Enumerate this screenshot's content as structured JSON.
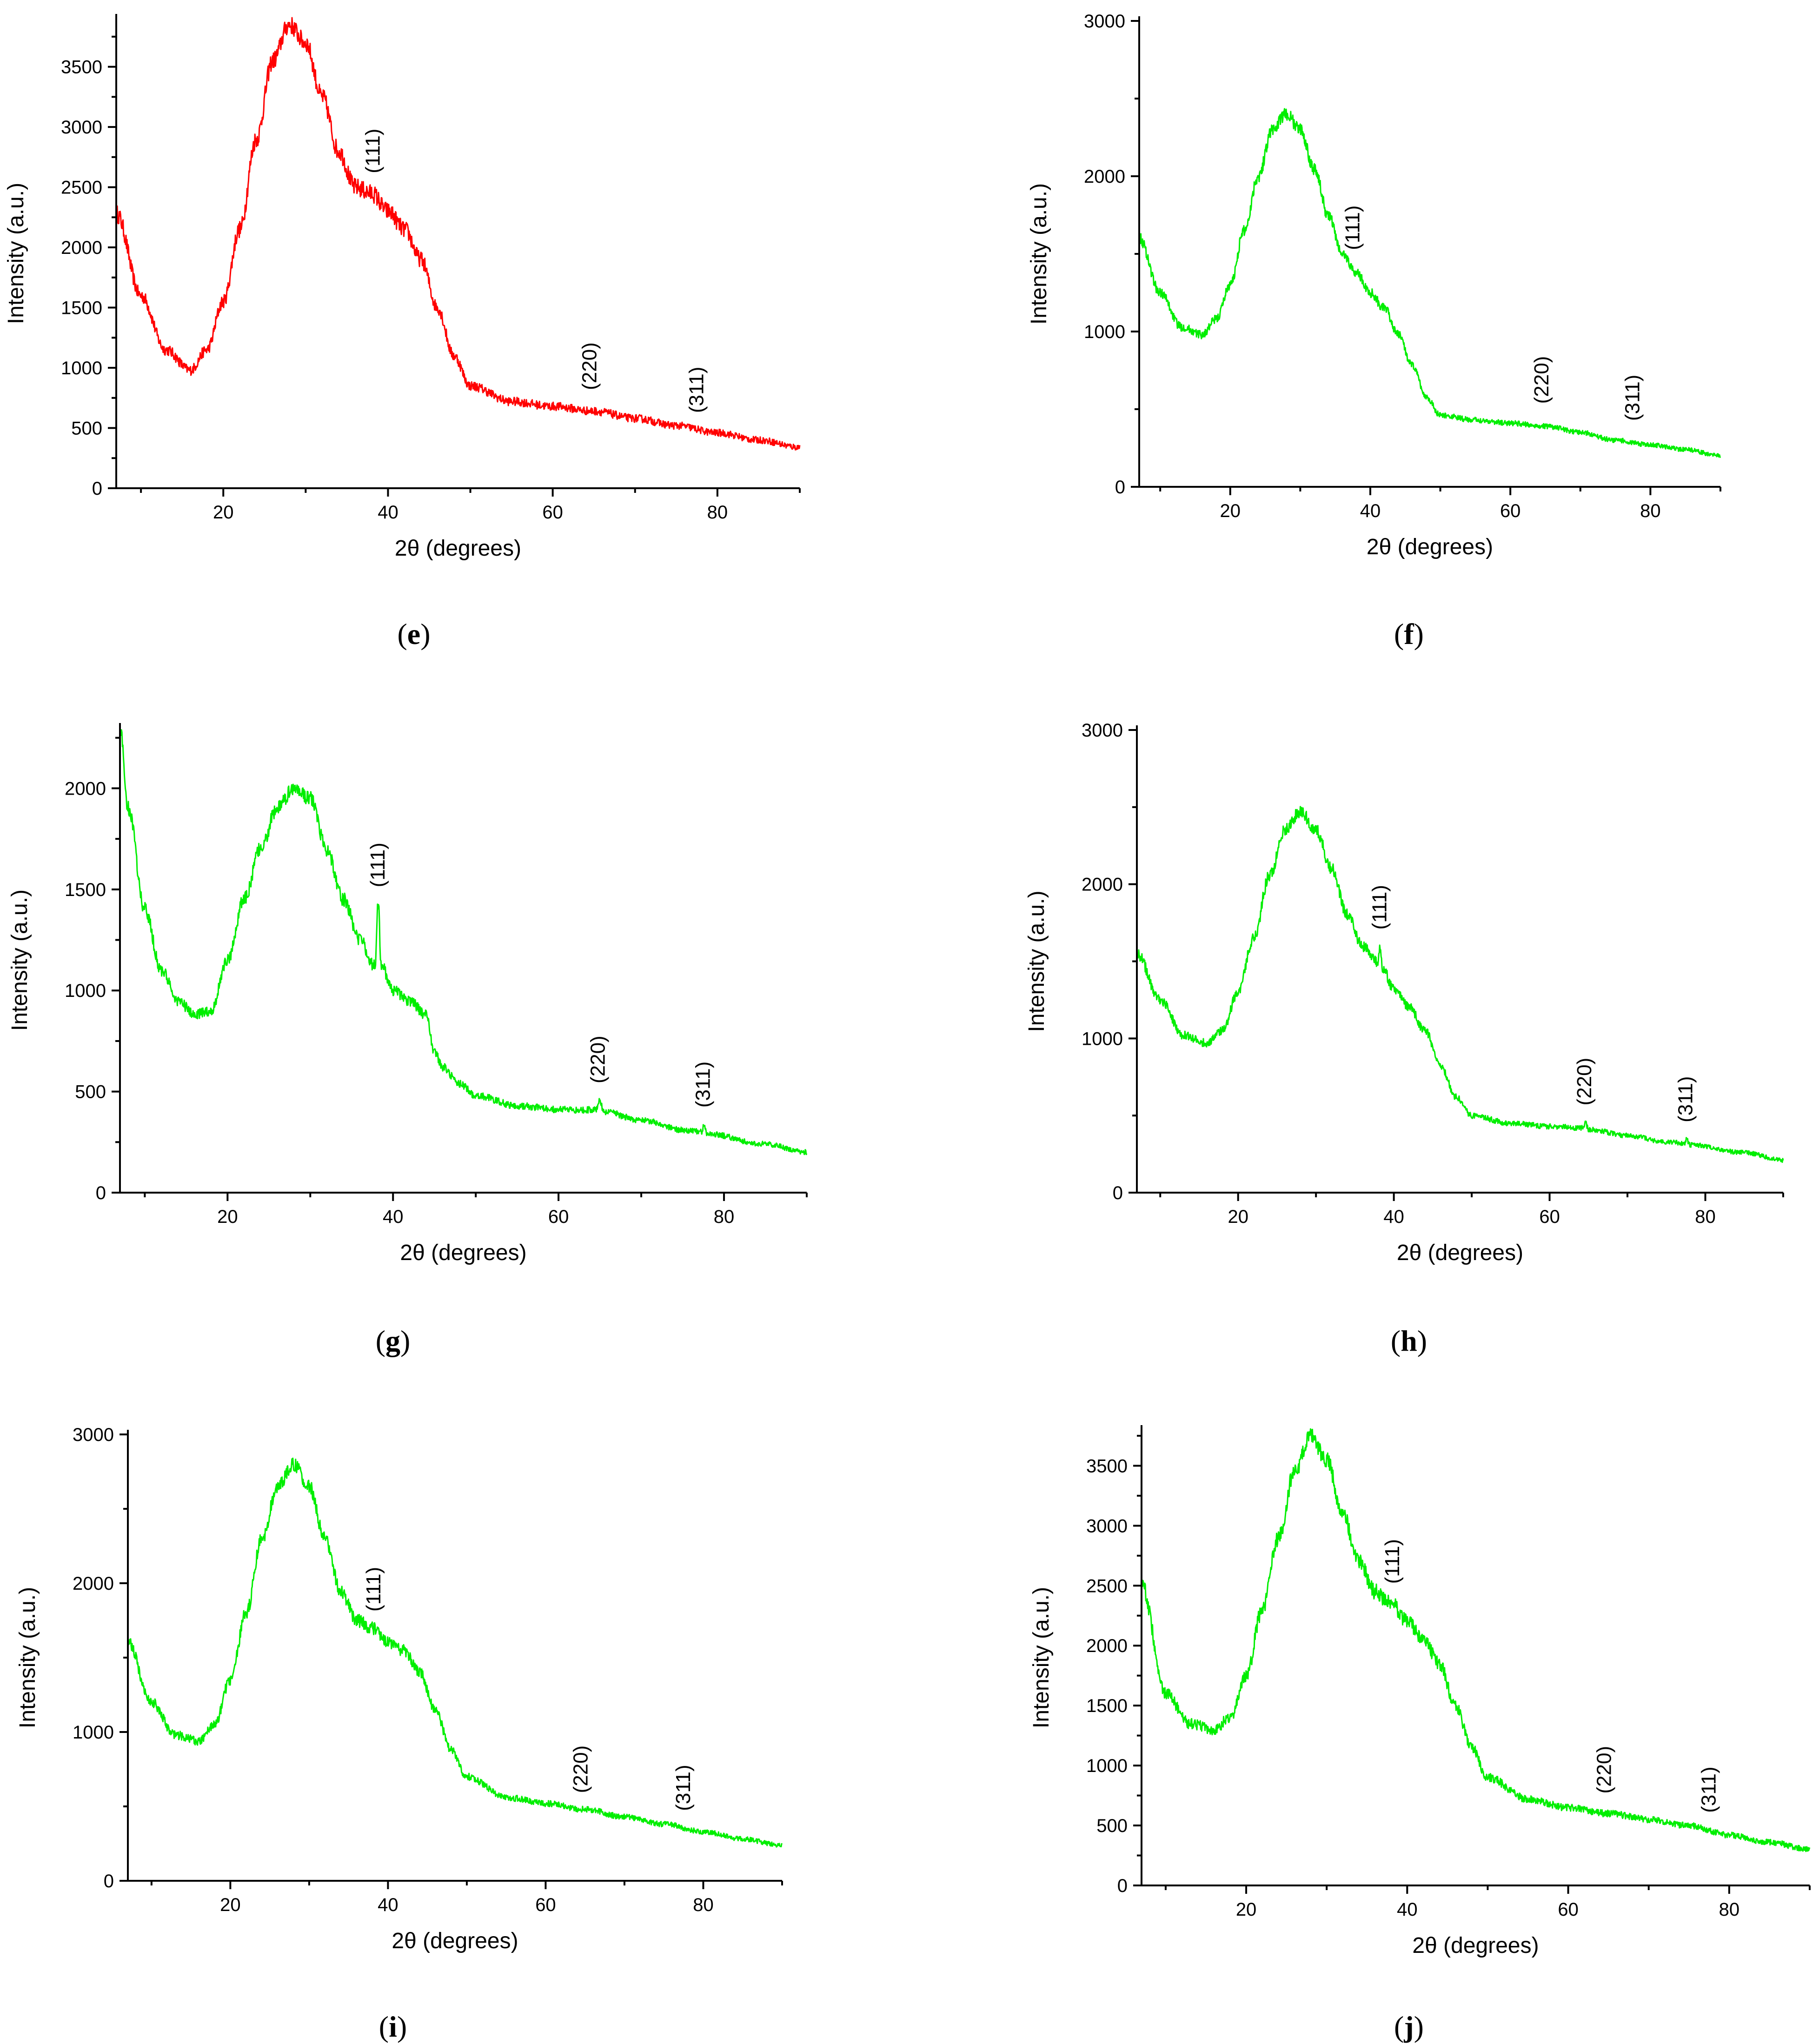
{
  "figure": {
    "domain": "XRD patterns"
  },
  "colors": {
    "red": "#ff0000",
    "green": "#00ee00",
    "axis": "#000000"
  },
  "chart_data": [
    {
      "id": "e",
      "type": "line",
      "panel_label": "e",
      "color": "#ff0000",
      "xlabel": "2θ (degrees)",
      "ylabel": "Intensity (a.u.)",
      "xlim": [
        7,
        90
      ],
      "ylim": [
        0,
        3900
      ],
      "xticks": [
        20,
        40,
        60,
        80
      ],
      "yticks": [
        0,
        500,
        1000,
        1500,
        2000,
        2500,
        3000,
        3500
      ],
      "peaks": [
        {
          "label": "(111)",
          "x": 38.2,
          "y": 2480
        },
        {
          "label": "(220)",
          "x": 64.5,
          "y": 680
        },
        {
          "label": "(311)",
          "x": 77.5,
          "y": 490
        }
      ],
      "series": [
        {
          "name": "e",
          "x": [
            7,
            10,
            13,
            16,
            18,
            20,
            22,
            24,
            26,
            28,
            30,
            32,
            34,
            36,
            38,
            40,
            42,
            44,
            46,
            48,
            50,
            55,
            60,
            65,
            70,
            75,
            80,
            85,
            90
          ],
          "values": [
            2280,
            1600,
            1150,
            980,
            1150,
            1550,
            2150,
            2900,
            3550,
            3850,
            3700,
            3250,
            2800,
            2500,
            2450,
            2300,
            2150,
            1900,
            1500,
            1100,
            850,
            720,
            680,
            640,
            580,
            520,
            460,
            400,
            340
          ]
        }
      ],
      "noise": 150
    },
    {
      "id": "f",
      "type": "line",
      "panel_label": "f",
      "color": "#00ee00",
      "xlabel": "2θ (degrees)",
      "ylabel": "Intensity (a.u.)",
      "xlim": [
        7,
        90
      ],
      "ylim": [
        0,
        3000
      ],
      "xticks": [
        20,
        40,
        60,
        80
      ],
      "yticks": [
        0,
        1000,
        2000,
        3000
      ],
      "peaks": [
        {
          "label": "(111)",
          "x": 37.5,
          "y": 1420
        },
        {
          "label": "(220)",
          "x": 64.5,
          "y": 430
        },
        {
          "label": "(311)",
          "x": 77.5,
          "y": 320
        }
      ],
      "series": [
        {
          "name": "f",
          "x": [
            7,
            10,
            13,
            16,
            18,
            20,
            22,
            24,
            26,
            28,
            30,
            32,
            34,
            36,
            38,
            40,
            42,
            44,
            46,
            48,
            50,
            55,
            60,
            65,
            70,
            75,
            80,
            85,
            90
          ],
          "values": [
            1600,
            1250,
            1030,
            980,
            1080,
            1300,
            1650,
            2000,
            2300,
            2400,
            2300,
            2050,
            1750,
            1500,
            1380,
            1250,
            1150,
            980,
            780,
            580,
            460,
            430,
            410,
            390,
            350,
            300,
            270,
            240,
            200
          ]
        }
      ],
      "noise": 80
    },
    {
      "id": "g",
      "type": "line",
      "panel_label": "g",
      "color": "#00ee00",
      "xlabel": "2θ (degrees)",
      "ylabel": "Intensity (a.u.)",
      "xlim": [
        7,
        90
      ],
      "ylim": [
        0,
        2300
      ],
      "xticks": [
        20,
        40,
        60,
        80
      ],
      "yticks": [
        0,
        500,
        1000,
        1500,
        2000
      ],
      "peaks": [
        {
          "label": "(111)",
          "x": 38.2,
          "y": 1430
        },
        {
          "label": "(220)",
          "x": 64.8,
          "y": 460
        },
        {
          "label": "(311)",
          "x": 77.5,
          "y": 340
        }
      ],
      "series": [
        {
          "name": "g",
          "x": [
            7,
            8,
            10,
            12,
            14,
            16,
            18,
            20,
            22,
            24,
            26,
            28,
            30,
            32,
            34,
            36,
            37.8,
            38.2,
            38.6,
            40,
            42,
            44,
            45,
            46,
            48,
            50,
            55,
            60,
            64.6,
            65,
            65.4,
            70,
            75,
            77.3,
            77.6,
            78,
            85,
            90
          ],
          "values": [
            2300,
            1900,
            1400,
            1100,
            950,
            880,
            900,
            1150,
            1450,
            1700,
            1900,
            2000,
            1950,
            1700,
            1450,
            1250,
            1120,
            1430,
            1120,
            1000,
            950,
            880,
            700,
            620,
            540,
            480,
            430,
            410,
            410,
            460,
            400,
            360,
            310,
            300,
            340,
            290,
            240,
            200
          ]
        }
      ],
      "noise": 70
    },
    {
      "id": "h",
      "type": "line",
      "panel_label": "h",
      "color": "#00ee00",
      "xlabel": "2θ (degrees)",
      "ylabel": "Intensity (a.u.)",
      "xlim": [
        7,
        90
      ],
      "ylim": [
        0,
        3000
      ],
      "xticks": [
        20,
        40,
        60,
        80
      ],
      "yticks": [
        0,
        1000,
        2000,
        3000
      ],
      "peaks": [
        {
          "label": "(111)",
          "x": 38.2,
          "y": 1600
        },
        {
          "label": "(220)",
          "x": 64.5,
          "y": 460
        },
        {
          "label": "(311)",
          "x": 77.5,
          "y": 350
        }
      ],
      "series": [
        {
          "name": "h",
          "x": [
            7,
            10,
            13,
            16,
            18,
            20,
            22,
            24,
            26,
            28,
            30,
            32,
            34,
            36,
            37.9,
            38.2,
            38.6,
            40,
            42,
            44,
            46,
            48,
            50,
            55,
            60,
            64.3,
            64.6,
            65,
            70,
            75,
            77.3,
            77.6,
            78,
            85,
            90
          ],
          "values": [
            1550,
            1250,
            1020,
            970,
            1050,
            1300,
            1650,
            2050,
            2350,
            2470,
            2350,
            2100,
            1800,
            1600,
            1500,
            1600,
            1450,
            1320,
            1200,
            1050,
            820,
            620,
            500,
            450,
            430,
            420,
            460,
            410,
            370,
            330,
            320,
            350,
            310,
            260,
            210
          ]
        }
      ],
      "noise": 80
    },
    {
      "id": "i",
      "type": "line",
      "panel_label": "i",
      "color": "#00ee00",
      "xlabel": "2θ (degrees)",
      "ylabel": "Intensity (a.u.)",
      "xlim": [
        7,
        90
      ],
      "ylim": [
        0,
        3000
      ],
      "xticks": [
        20,
        40,
        60,
        80
      ],
      "yticks": [
        0,
        1000,
        2000,
        3000
      ],
      "peaks": [
        {
          "label": "(111)",
          "x": 38.2,
          "y": 1700
        },
        {
          "label": "(220)",
          "x": 64.5,
          "y": 480
        },
        {
          "label": "(311)",
          "x": 77.5,
          "y": 360
        }
      ],
      "series": [
        {
          "name": "i",
          "x": [
            7,
            10,
            13,
            16,
            18,
            20,
            22,
            24,
            26,
            28,
            30,
            32,
            34,
            36,
            38,
            40,
            42,
            44,
            46,
            48,
            50,
            55,
            60,
            65,
            70,
            75,
            80,
            85,
            90
          ],
          "values": [
            1600,
            1200,
            980,
            940,
            1050,
            1350,
            1800,
            2300,
            2650,
            2800,
            2650,
            2300,
            1950,
            1750,
            1700,
            1600,
            1550,
            1400,
            1150,
            880,
            700,
            560,
            520,
            480,
            430,
            380,
            330,
            280,
            240
          ]
        }
      ],
      "noise": 90
    },
    {
      "id": "j",
      "type": "line",
      "panel_label": "j",
      "color": "#00ee00",
      "xlabel": "2θ (degrees)",
      "ylabel": "Intensity (a.u.)",
      "xlim": [
        7,
        90
      ],
      "ylim": [
        0,
        3800
      ],
      "xticks": [
        20,
        40,
        60,
        80
      ],
      "yticks": [
        0,
        500,
        1000,
        1500,
        2000,
        2500,
        3000,
        3500
      ],
      "peaks": [
        {
          "label": "(111)",
          "x": 38.2,
          "y": 2380
        },
        {
          "label": "(220)",
          "x": 64.5,
          "y": 630
        },
        {
          "label": "(311)",
          "x": 77.5,
          "y": 470
        }
      ],
      "series": [
        {
          "name": "j",
          "x": [
            7,
            10,
            13,
            16,
            18,
            20,
            22,
            24,
            26,
            28,
            30,
            32,
            34,
            36,
            38,
            40,
            42,
            44,
            46,
            48,
            50,
            55,
            60,
            65,
            70,
            75,
            80,
            85,
            90
          ],
          "values": [
            2500,
            1600,
            1350,
            1300,
            1400,
            1750,
            2300,
            2900,
            3450,
            3750,
            3550,
            3100,
            2700,
            2450,
            2350,
            2200,
            2050,
            1850,
            1500,
            1150,
            900,
            720,
            650,
            600,
            550,
            500,
            420,
            360,
            300
          ]
        }
      ],
      "noise": 130
    }
  ]
}
